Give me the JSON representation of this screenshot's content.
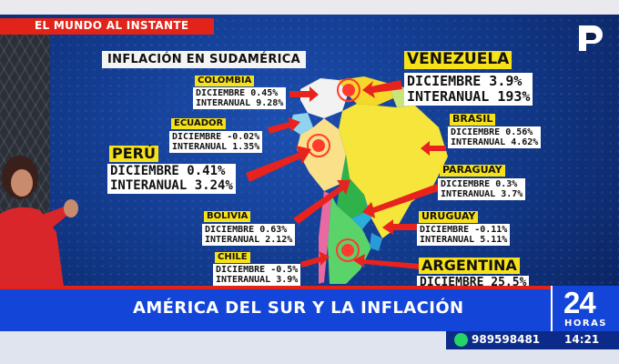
{
  "header": {
    "segment": "EL MUNDO AL INSTANTE"
  },
  "map": {
    "title": "INFLACIÓN EN SUDAMÉRICA",
    "countries": [
      {
        "name": "VENEZUELA",
        "lines": [
          "DICIEMBRE 3.9%",
          "INTERANUAL 193%"
        ]
      },
      {
        "name": "COLOMBIA",
        "lines": [
          "DICIEMBRE 0.45%",
          "INTERANUAL 9.28%"
        ]
      },
      {
        "name": "ECUADOR",
        "lines": [
          "DICIEMBRE -0.02%",
          "INTERANUAL 1.35%"
        ]
      },
      {
        "name": "PERÚ",
        "lines": [
          "DICIEMBRE 0.41%",
          "INTERANUAL 3.24%"
        ]
      },
      {
        "name": "BRASIL",
        "lines": [
          "DICIEMBRE 0.56%",
          "INTERANUAL 4.62%"
        ]
      },
      {
        "name": "PARAGUAY",
        "lines": [
          "DICIEMBRE 0.3%",
          "INTERANUAL 3.7%"
        ]
      },
      {
        "name": "BOLIVIA",
        "lines": [
          "DICIEMBRE 0.63%",
          "INTERANUAL 2.12%"
        ]
      },
      {
        "name": "URUGUAY",
        "lines": [
          "DICIEMBRE -0.11%",
          "INTERANUAL 5.11%"
        ]
      },
      {
        "name": "CHILE",
        "lines": [
          "DICIEMBRE -0.5%",
          "INTERANUAL 3.9%"
        ]
      },
      {
        "name": "ARGENTINA",
        "lines": [
          "DICIEMBRE 25.5%"
        ]
      }
    ]
  },
  "lower_third": {
    "headline": "AMÉRICA DEL SUR Y LA INFLACIÓN"
  },
  "channel": {
    "number": "24",
    "word": "HORAS"
  },
  "ticker": {
    "phone": "989598481",
    "time": "14:21"
  },
  "colors": {
    "accent_red": "#e2231a",
    "bar_blue": "#1345d8",
    "tag_yellow": "#f7e21a"
  }
}
